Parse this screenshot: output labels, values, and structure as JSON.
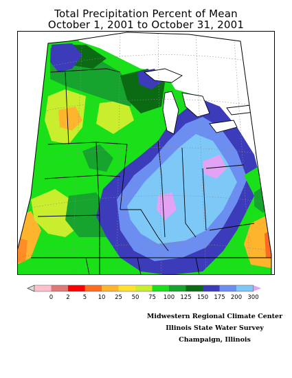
{
  "title": {
    "line1": "Total Precipitation Percent of Mean",
    "line2": "October 1, 2001 to October 31, 2001"
  },
  "legend": {
    "ticks": [
      "0",
      "2",
      "5",
      "10",
      "25",
      "50",
      "75",
      "100",
      "125",
      "150",
      "175",
      "200",
      "300"
    ],
    "colors": [
      "#ffc0cb",
      "#e07878",
      "#ff0000",
      "#ff6b1f",
      "#ffb42e",
      "#ffe22e",
      "#c9ee2e",
      "#19e019",
      "#16a32e",
      "#0b6b12",
      "#3c3cba",
      "#6b8ef0",
      "#7ec8f8",
      "#e3a3f5"
    ]
  },
  "credits": {
    "line1": "Midwestern Regional Climate Center",
    "line2": "Illinois State Water Survey",
    "line3": "Champaign, Illinois"
  }
}
